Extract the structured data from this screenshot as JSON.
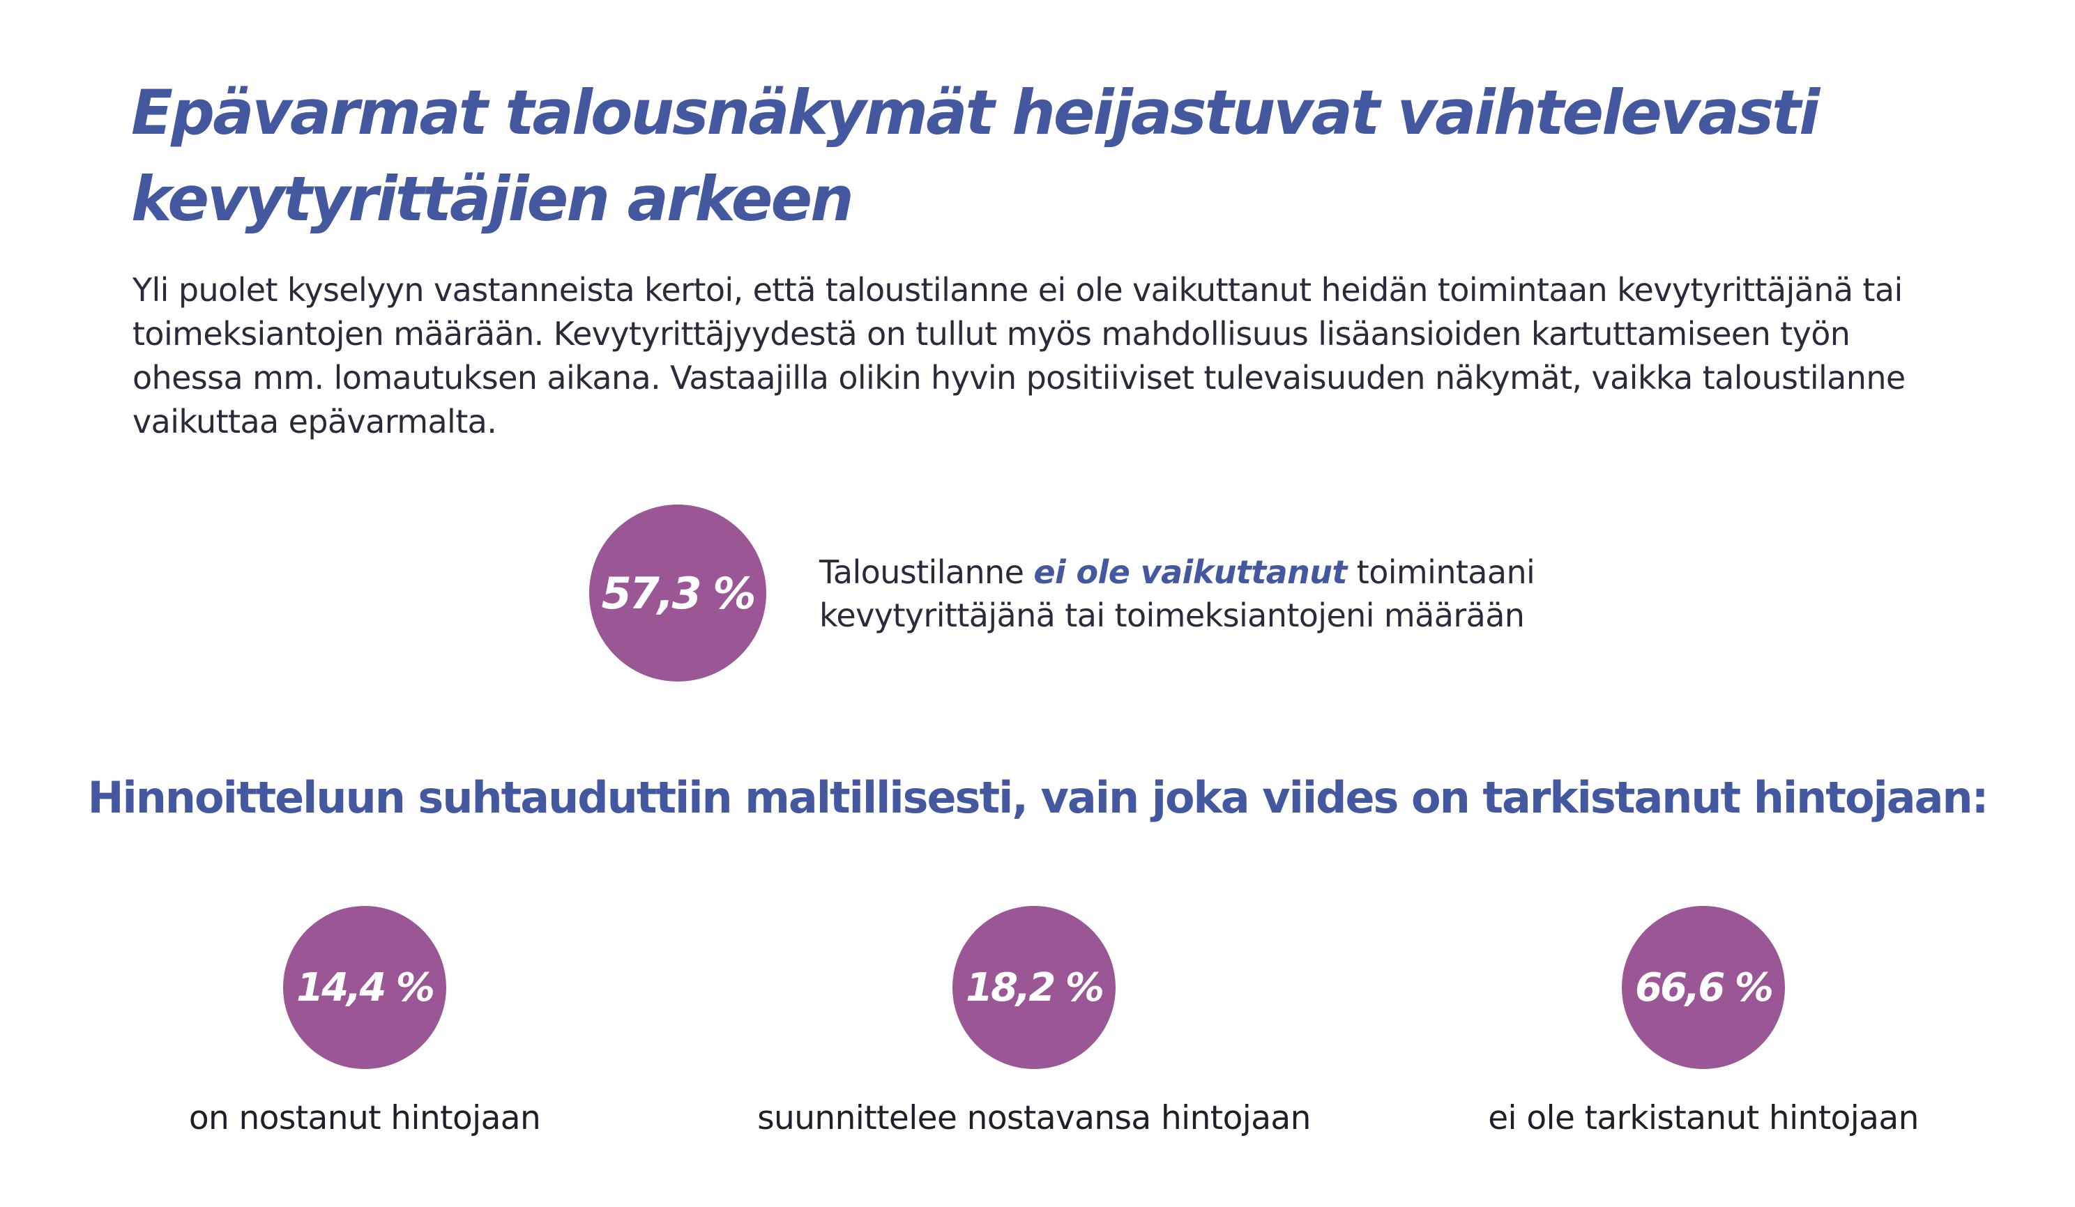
{
  "header": {
    "title_line1": "Epävarmat talousnäkymät heijastuvat vaihtelevasti",
    "title_line2": "kevytyrittäjien arkeen"
  },
  "intro": {
    "text": "Yli puolet kyselyyn vastanneista kertoi, että taloustilanne ei ole vaikuttanut heidän toimintaan kevytyrittäjänä tai toimeksiantojen määrään. Kevytyrittäjyydestä on tullut myös mahdollisuus lisäansioiden kartuttamiseen työn ohessa mm. lomautuksen aikana. Vastaajilla olikin hyvin positiiviset tulevaisuuden näkymät, vaikka taloustilanne vaikuttaa epävarmalta."
  },
  "main_stat": {
    "value": "57,3 %",
    "text_before": "Taloustilanne ",
    "text_emphasis": "ei ole vaikuttanut",
    "text_after_line1": " toimintaani",
    "text_line2": "kevytyrittäjänä tai toimeksiantojeni määrään"
  },
  "pricing": {
    "heading": "Hinnoitteluun suhtauduttiin maltillisesti, vain joka viides on tarkistanut hintojaan:",
    "stats": [
      {
        "value": "14,4 %",
        "label": "on nostanut hintojaan"
      },
      {
        "value": "18,2 %",
        "label": "suunnittelee nostavansa hintojaan"
      },
      {
        "value": "66,6 %",
        "label": "ei ole tarkistanut hintojaan"
      }
    ]
  },
  "colors": {
    "accent_blue": "#4458a0",
    "circle_purple": "#9b5696",
    "body_text": "#2a2a3a"
  }
}
